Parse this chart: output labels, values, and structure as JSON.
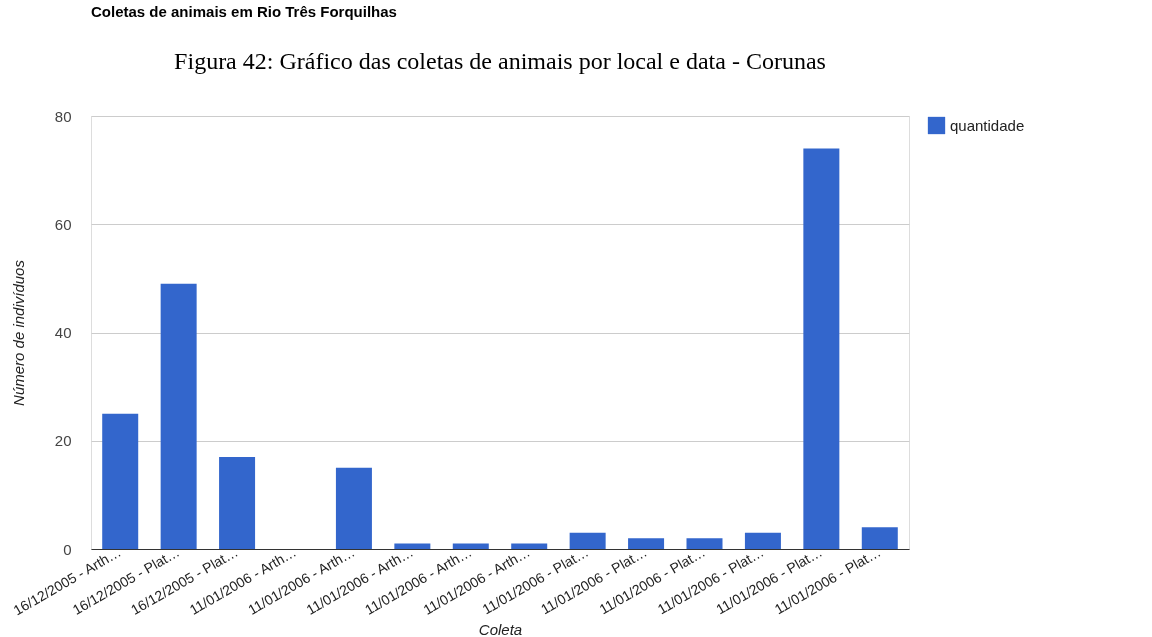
{
  "chart_data": {
    "type": "bar",
    "title": "Coletas de animais em Rio Três Forquilhas",
    "xlabel": "Coleta",
    "ylabel": "Número de indivíduos",
    "annotations": [
      "Figura 42: Gráfico das coletas de animais por local e data - Corunas"
    ],
    "categories": [
      "16/12/2005 - Arth…",
      "16/12/2005 - Plat…",
      "16/12/2005 - Plat…",
      "11/01/2006 - Arth…",
      "11/01/2006 - Arth…",
      "11/01/2006 - Arth…",
      "11/01/2006 - Arth…",
      "11/01/2006 - Arth…",
      "11/01/2006 - Plat…",
      "11/01/2006 - Plat…",
      "11/01/2006 - Plat…",
      "11/01/2006 - Plat…",
      "11/01/2006 - Plat…",
      "11/01/2006 - Plat…"
    ],
    "series": [
      {
        "name": "quantidade",
        "color": "#3366cc",
        "values": [
          25,
          49,
          17,
          0,
          15,
          1,
          1,
          1,
          3,
          2,
          2,
          3,
          74,
          4
        ]
      }
    ],
    "ylim": [
      0,
      80
    ],
    "yticks": [
      0,
      20,
      40,
      60,
      80
    ],
    "grid": "y",
    "legend": "right"
  }
}
